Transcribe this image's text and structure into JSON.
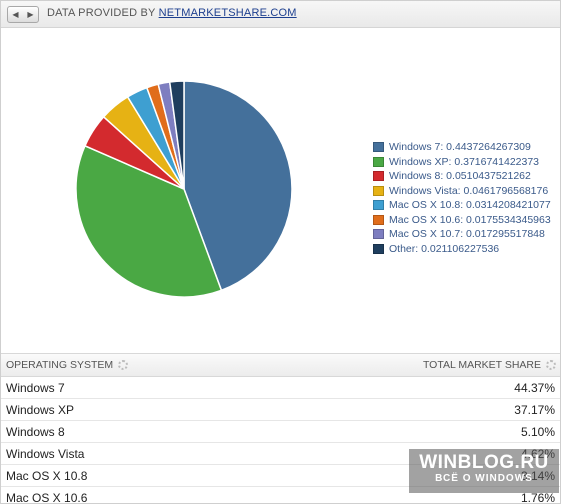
{
  "header": {
    "source_prefix": "DATA PROVIDED BY",
    "source_link": "NETMARKETSHARE.COM",
    "prev_icon": "triangle-left-icon",
    "next_icon": "triangle-right-icon"
  },
  "chart_data": {
    "type": "pie",
    "title": "",
    "categories": [
      "Windows 7",
      "Windows XP",
      "Windows 8",
      "Windows Vista",
      "Mac OS X 10.8",
      "Mac OS X 10.6",
      "Mac OS X 10.7",
      "Other"
    ],
    "values": [
      0.4437264267309,
      0.3716741422373,
      0.0510437521262,
      0.0461796568176,
      0.0314208421077,
      0.0175534345963,
      0.017295517848,
      0.021106227536
    ],
    "colors": [
      "#44709b",
      "#4aa844",
      "#d32a2e",
      "#e6b214",
      "#3e9fd1",
      "#e06d1b",
      "#7e7ec0",
      "#1f3e5e"
    ],
    "legend_labels": [
      "Windows 7: 0.4437264267309",
      "Windows XP: 0.3716741422373",
      "Windows 8: 0.0510437521262",
      "Windows Vista: 0.0461796568176",
      "Mac OS X 10.8: 0.0314208421077",
      "Mac OS X 10.6: 0.0175534345963",
      "Mac OS X 10.7: 0.017295517848",
      "Other: 0.021106227536"
    ],
    "legend_position": "right"
  },
  "table": {
    "col_os": "OPERATING SYSTEM",
    "col_share": "TOTAL MARKET SHARE",
    "rows": [
      {
        "os": "Windows 7",
        "share": "44.37%"
      },
      {
        "os": "Windows XP",
        "share": "37.17%"
      },
      {
        "os": "Windows 8",
        "share": "5.10%"
      },
      {
        "os": "Windows Vista",
        "share": "4.62%"
      },
      {
        "os": "Mac OS X 10.8",
        "share": "3.14%"
      },
      {
        "os": "Mac OS X 10.6",
        "share": "1.76%"
      }
    ]
  },
  "watermark": {
    "main": "WINBLOG.RU",
    "sub": "ВСЁ О WINDOWS"
  }
}
